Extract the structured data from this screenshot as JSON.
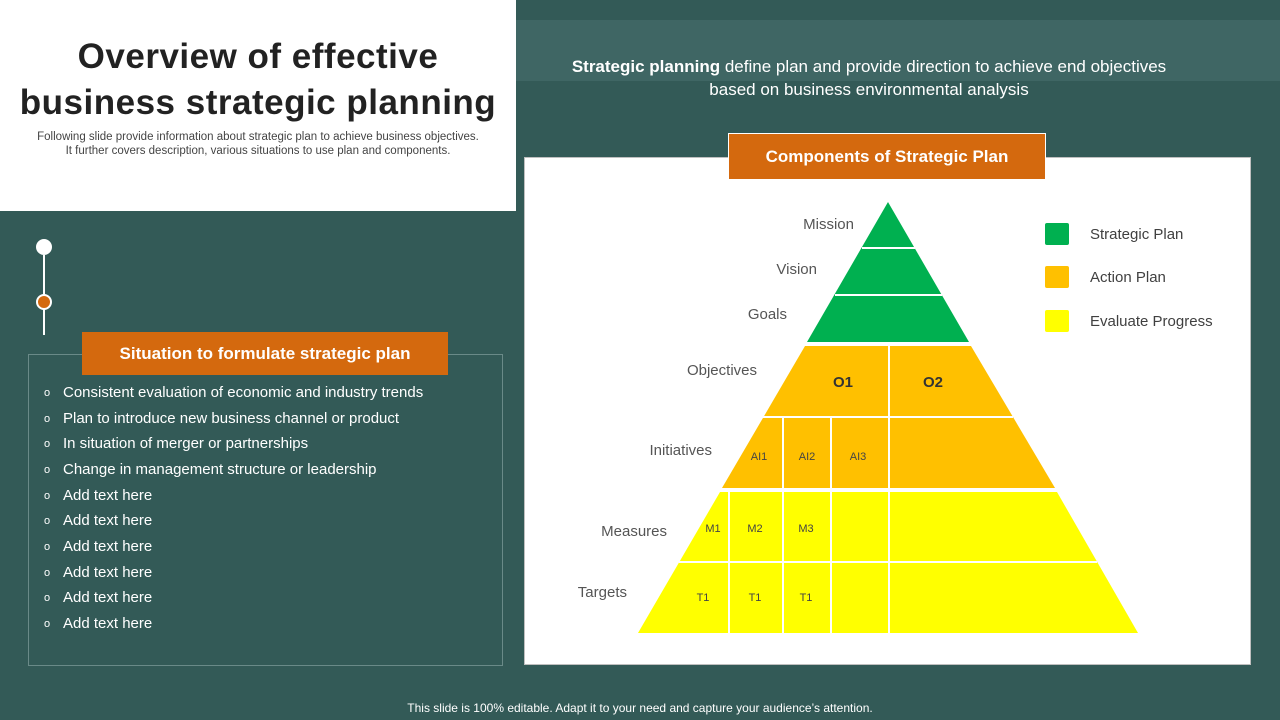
{
  "title": "Overview of effective business strategic planning",
  "subtitle_lines": [
    "Following slide provide information about strategic plan to achieve business objectives.",
    "It further covers description, various situations to use plan and components."
  ],
  "description": {
    "bold": "Strategic planning",
    "rest_line1": " define plan and provide direction to achieve end objectives",
    "line2": "based on business environmental analysis"
  },
  "situation": {
    "header": "Situation to formulate strategic plan",
    "items": [
      "Consistent evaluation of economic and industry trends",
      "Plan to introduce new business channel or product",
      "In situation of merger or partnerships",
      "Change in management structure or leadership",
      "Add text here",
      "Add text here",
      "Add text here",
      "Add text here",
      "Add text here",
      "Add text here"
    ]
  },
  "components": {
    "header": "Components of Strategic Plan",
    "levels": [
      "Mission",
      "Vision",
      "Goals",
      "Objectives",
      "Initiatives",
      "Measures",
      "Targets"
    ],
    "objectives": [
      "O1",
      "O2"
    ],
    "initiatives": [
      "AI1",
      "AI2",
      "AI3"
    ],
    "measures": [
      "M1",
      "M2",
      "M3"
    ],
    "targets": [
      "T1",
      "T1",
      "T1"
    ]
  },
  "legend": [
    {
      "label": "Strategic Plan",
      "color": "#00b050"
    },
    {
      "label": "Action Plan",
      "color": "#ffc000"
    },
    {
      "label": "Evaluate Progress",
      "color": "#ffff00"
    }
  ],
  "colors": {
    "background": "#335a57",
    "accent": "#d4690e",
    "green": "#00b050",
    "orange": "#ffc000",
    "yellow": "#ffff00"
  },
  "footer": "This slide is 100% editable. Adapt it to your need and capture your audience’s attention."
}
